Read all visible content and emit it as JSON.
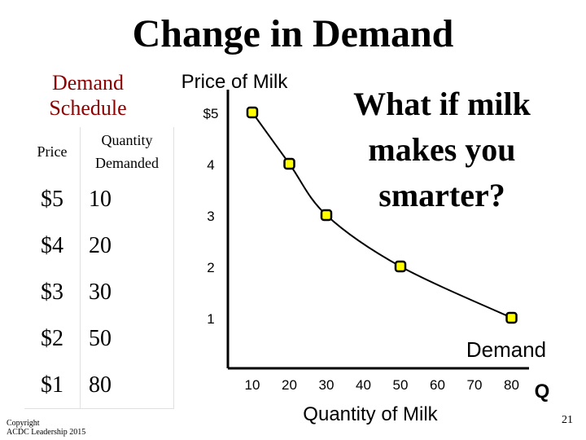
{
  "slide": {
    "title": "Change in Demand",
    "question": "What if milk makes you smarter?",
    "copyright_line1": "Copyright",
    "copyright_line2": "ACDC Leadership 2015",
    "page_number": "21"
  },
  "schedule": {
    "title_line1": "Demand",
    "title_line2": "Schedule",
    "header_price": "Price",
    "header_qty_line1": "Quantity",
    "header_qty_line2": "Demanded",
    "rows": [
      {
        "price": "$5",
        "qty": "10"
      },
      {
        "price": "$4",
        "qty": "20"
      },
      {
        "price": "$3",
        "qty": "30"
      },
      {
        "price": "$2",
        "qty": "50"
      },
      {
        "price": "$1",
        "qty": "80"
      }
    ]
  },
  "chart_data": {
    "type": "line",
    "title": "",
    "ylabel": "Price of Milk",
    "xlabel": "Quantity of Milk",
    "xaxis_symbol": "Q",
    "series": [
      {
        "name": "Demand",
        "x": [
          10,
          20,
          30,
          50,
          80
        ],
        "y": [
          5,
          4,
          3,
          2,
          1
        ]
      }
    ],
    "x_ticks": [
      10,
      20,
      30,
      40,
      50,
      60,
      70,
      80
    ],
    "y_ticks": [
      1,
      2,
      3,
      4,
      5
    ],
    "y_tick_labels": [
      "1",
      "2",
      "3",
      "4",
      "$5"
    ],
    "xlim": [
      0,
      80
    ],
    "ylim": [
      0,
      5
    ],
    "grid": false,
    "marker_color": "#ffff00",
    "line_color": "#000000"
  }
}
